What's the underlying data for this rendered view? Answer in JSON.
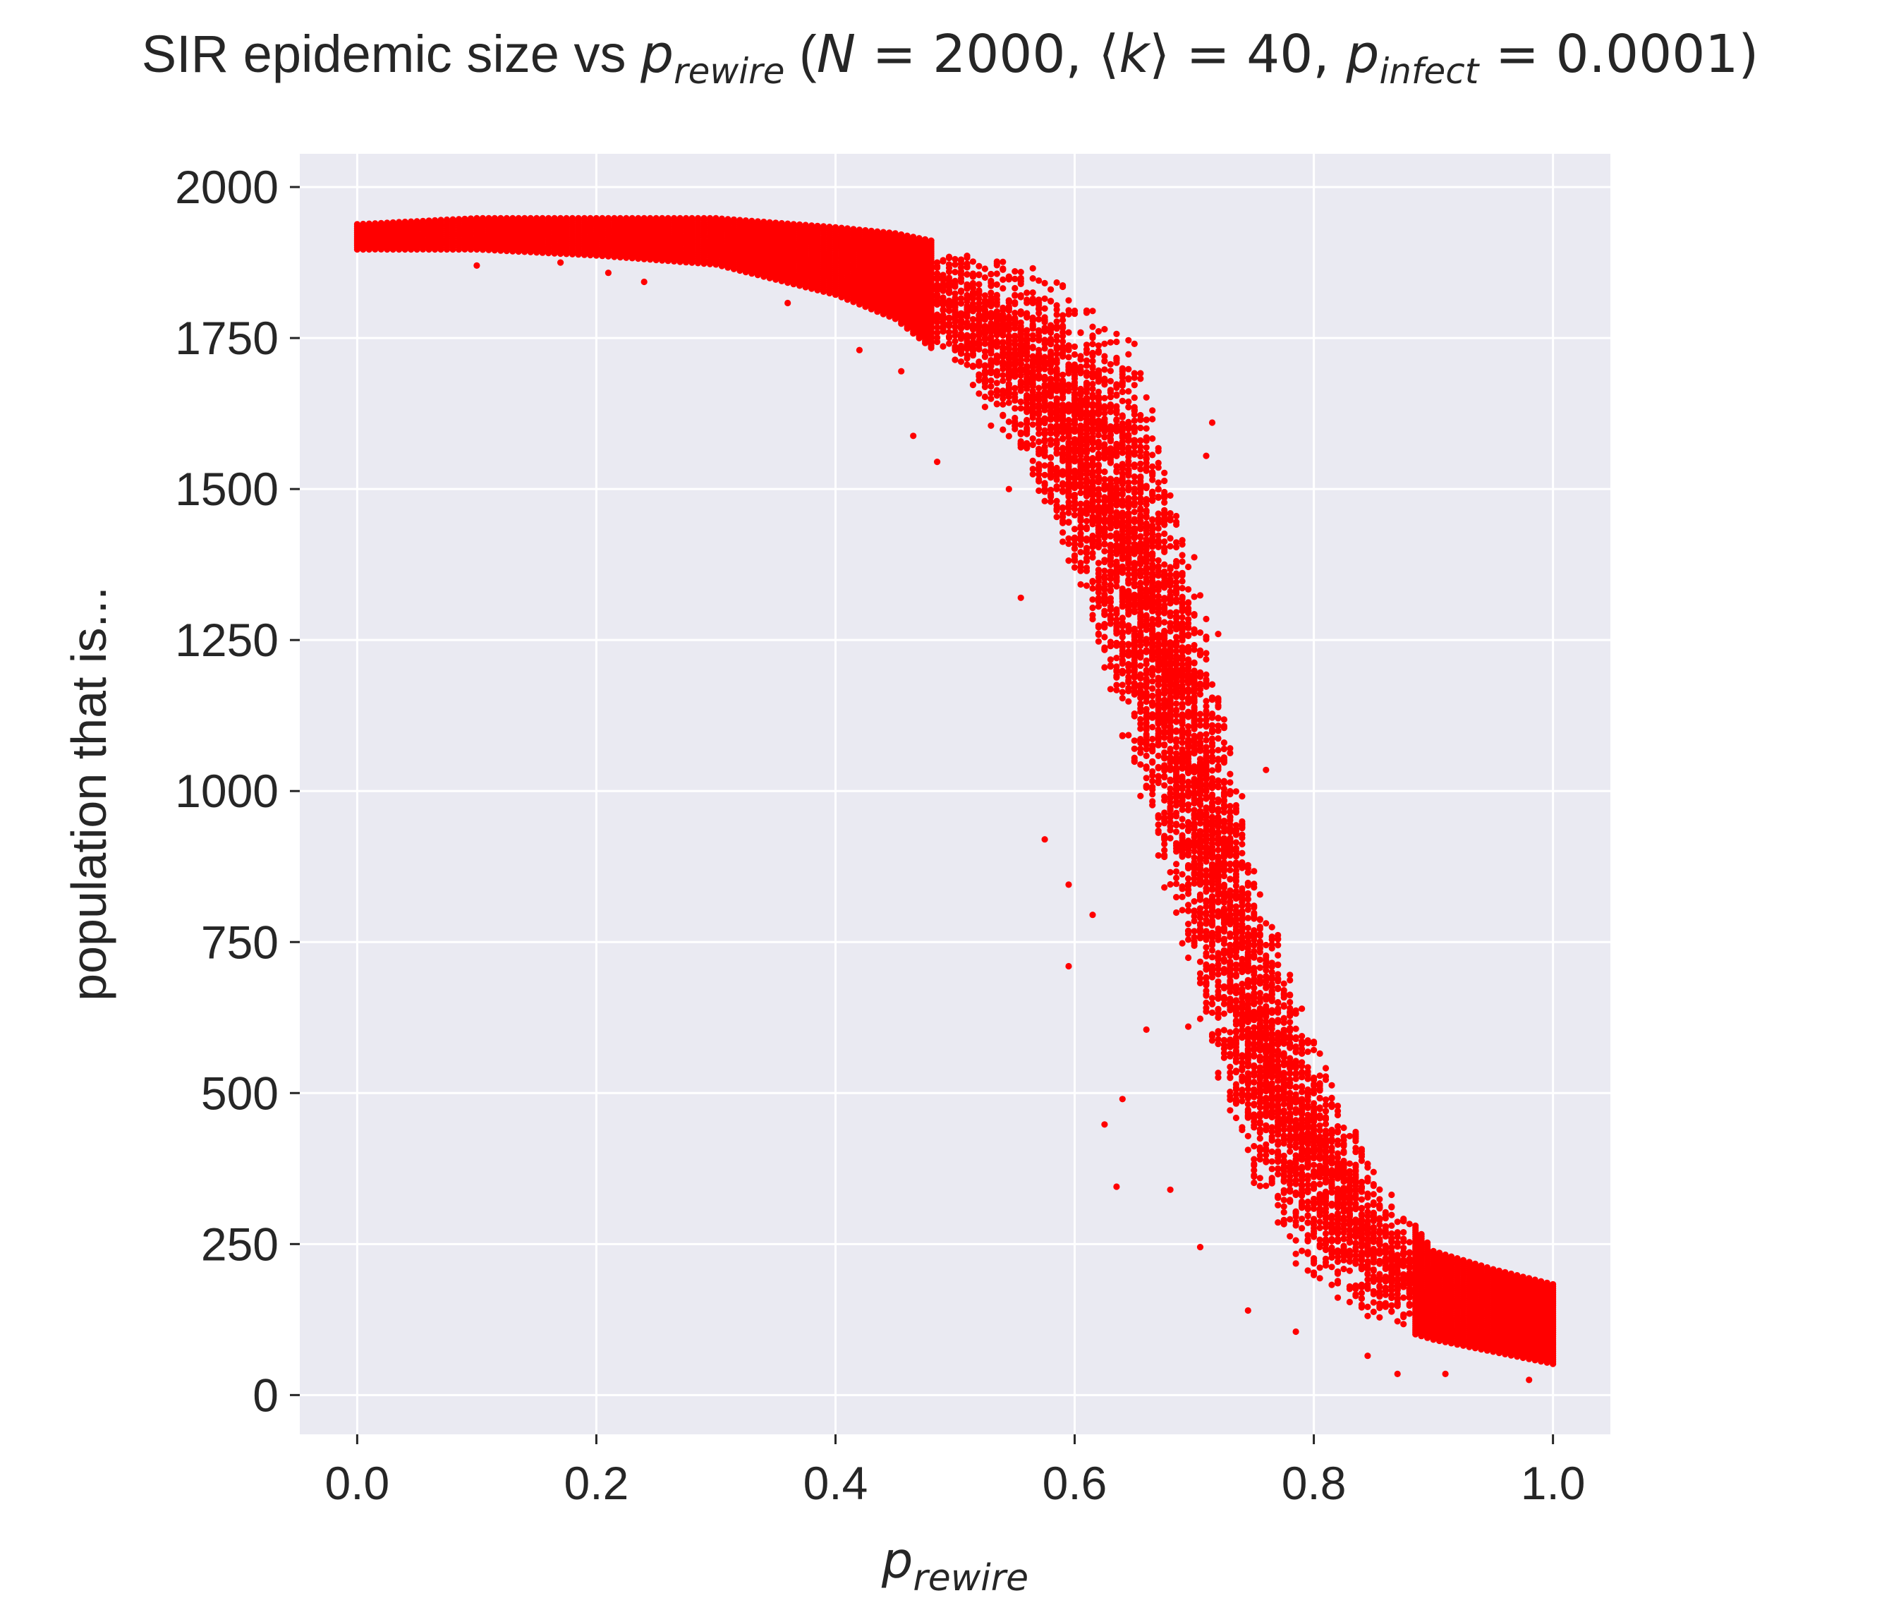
{
  "chart_data": {
    "type": "scatter",
    "title": {
      "prefix": "SIR epidemic size vs ",
      "p_sym": "p",
      "rewire_sub": "rewire",
      "open_paren": " (",
      "N_sym": "N",
      "N_val": " = 2000, ",
      "k_open": "⟨",
      "k_sym": "k",
      "k_close": "⟩",
      "k_val": " = 40, ",
      "infect_sub": "infect",
      "infect_val": " = 0.0001)"
    },
    "xlabel": {
      "p_sym": "p",
      "sub": "rewire"
    },
    "ylabel": "population that is...",
    "xlim": [
      -0.048,
      1.048
    ],
    "ylim": [
      -65,
      2055
    ],
    "xticks": [
      0.0,
      0.2,
      0.4,
      0.6,
      0.8,
      1.0
    ],
    "xtick_labels": [
      "0.0",
      "0.2",
      "0.4",
      "0.6",
      "0.8",
      "1.0"
    ],
    "yticks": [
      0,
      250,
      500,
      750,
      1000,
      1250,
      1500,
      1750,
      2000
    ],
    "ytick_labels": [
      "0",
      "250",
      "500",
      "750",
      "1000",
      "1250",
      "1500",
      "1750",
      "2000"
    ],
    "grid": true,
    "marker_color": "#ff0000",
    "background_color": "#eaeaf2",
    "x_step": 0.005,
    "series": [
      {
        "name": "",
        "profile": {
          "p": [
            0.0,
            0.1,
            0.2,
            0.3,
            0.4,
            0.45,
            0.5,
            0.55,
            0.6,
            0.65,
            0.7,
            0.75,
            0.8,
            0.85,
            0.9,
            0.95,
            1.0
          ],
          "upper": [
            1940,
            1950,
            1950,
            1950,
            1935,
            1925,
            1905,
            1880,
            1845,
            1750,
            1400,
            900,
            600,
            380,
            240,
            210,
            185
          ],
          "lower": [
            1895,
            1895,
            1885,
            1870,
            1820,
            1780,
            1700,
            1560,
            1350,
            1000,
            650,
            320,
            170,
            120,
            90,
            70,
            50
          ]
        },
        "outliers": [
          [
            0.1,
            1870
          ],
          [
            0.17,
            1875
          ],
          [
            0.21,
            1858
          ],
          [
            0.24,
            1843
          ],
          [
            0.36,
            1808
          ],
          [
            0.42,
            1730
          ],
          [
            0.455,
            1695
          ],
          [
            0.465,
            1588
          ],
          [
            0.485,
            1545
          ],
          [
            0.53,
            1605
          ],
          [
            0.545,
            1500
          ],
          [
            0.555,
            1320
          ],
          [
            0.575,
            920
          ],
          [
            0.595,
            845
          ],
          [
            0.595,
            710
          ],
          [
            0.6,
            1390
          ],
          [
            0.615,
            795
          ],
          [
            0.625,
            448
          ],
          [
            0.635,
            345
          ],
          [
            0.64,
            490
          ],
          [
            0.66,
            605
          ],
          [
            0.68,
            340
          ],
          [
            0.695,
            610
          ],
          [
            0.705,
            245
          ],
          [
            0.71,
            1555
          ],
          [
            0.715,
            1610
          ],
          [
            0.72,
            1260
          ],
          [
            0.745,
            140
          ],
          [
            0.76,
            1035
          ],
          [
            0.785,
            105
          ],
          [
            0.845,
            65
          ],
          [
            0.87,
            35
          ],
          [
            0.91,
            35
          ],
          [
            0.98,
            25
          ]
        ]
      }
    ]
  }
}
